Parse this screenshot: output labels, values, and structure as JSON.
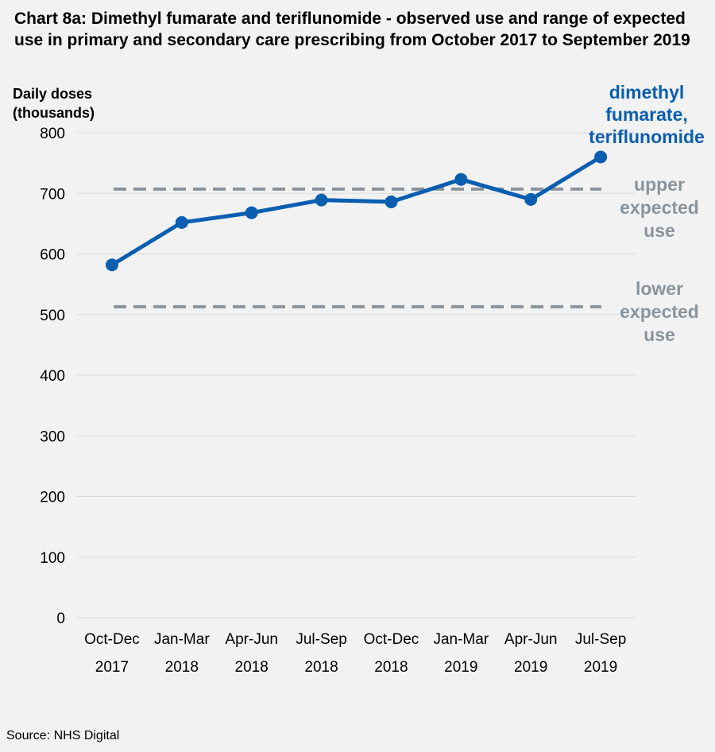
{
  "title": "Chart 8a: Dimethyl fumarate and teriflunomide - observed use and range of expected use in primary and secondary care prescribing from October 2017 to September 2019",
  "source": "Source: NHS Digital",
  "chart_data": {
    "type": "line",
    "title": "Chart 8a: Dimethyl fumarate and teriflunomide - observed use and range of expected use in primary and secondary care prescribing from October 2017 to September 2019",
    "ylabel": "Daily doses (thousands)",
    "ylim": [
      0,
      800
    ],
    "yticks": [
      0,
      100,
      200,
      300,
      400,
      500,
      600,
      700,
      800
    ],
    "grid": true,
    "categories": [
      {
        "line1": "Oct-Dec",
        "line2": "2017"
      },
      {
        "line1": "Jan-Mar",
        "line2": "2018"
      },
      {
        "line1": "Apr-Jun",
        "line2": "2018"
      },
      {
        "line1": "Jul-Sep",
        "line2": "2018"
      },
      {
        "line1": "Oct-Dec",
        "line2": "2018"
      },
      {
        "line1": "Jan-Mar",
        "line2": "2019"
      },
      {
        "line1": "Apr-Jun",
        "line2": "2019"
      },
      {
        "line1": "Jul-Sep",
        "line2": "2019"
      }
    ],
    "series": [
      {
        "name": "dimethyl fumarate, teriflunomide",
        "label_lines": [
          "dimethyl",
          "fumarate,",
          "teriflunomide"
        ],
        "color": "#0a5eb0",
        "values": [
          582,
          652,
          668,
          689,
          686,
          723,
          690,
          760
        ]
      }
    ],
    "reference_lines": [
      {
        "name": "upper expected use",
        "label_lines": [
          "upper",
          "expected",
          "use"
        ],
        "value": 707,
        "color": "#8b949c"
      },
      {
        "name": "lower expected use",
        "label_lines": [
          "lower",
          "expected",
          "use"
        ],
        "value": 513,
        "color": "#8b949c"
      }
    ]
  }
}
